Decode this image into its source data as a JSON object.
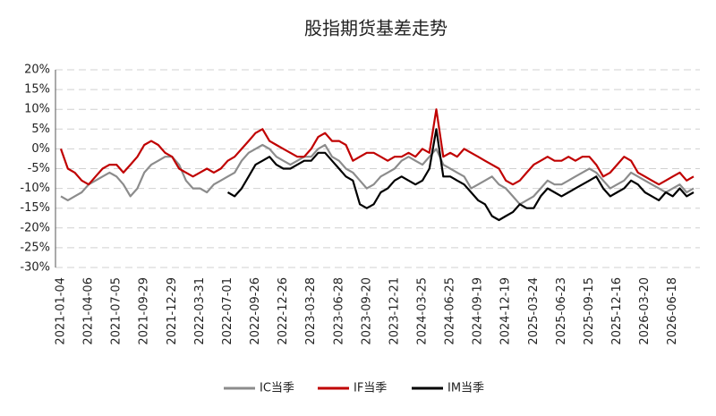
{
  "chart_data": {
    "type": "line",
    "title": "股指期货基差走势",
    "categories": [
      "2021-01-04",
      null,
      null,
      null,
      "2021-04-06",
      null,
      null,
      null,
      "2021-07-05",
      null,
      null,
      null,
      "2021-09-29",
      null,
      null,
      null,
      "2021-12-29",
      null,
      null,
      null,
      "2022-03-31",
      null,
      null,
      null,
      "2022-07-01",
      null,
      null,
      null,
      "2022-09-26",
      null,
      null,
      null,
      "2022-12-26",
      null,
      null,
      null,
      "2023-03-28",
      null,
      null,
      null,
      "2023-06-28",
      null,
      null,
      null,
      "2023-09-20",
      null,
      null,
      null,
      "2023-12-21",
      null,
      null,
      null,
      "2024-03-25",
      null,
      null,
      null,
      "2024-06-25",
      null,
      null,
      null,
      "2024-09-19",
      null,
      null,
      null,
      "2024-12-19",
      null,
      null,
      null,
      "2025-03-24",
      null,
      null,
      null,
      "2025-06-23",
      null,
      null,
      null,
      "2025-09-15",
      null,
      null,
      null,
      "2025-12-16",
      null,
      null,
      null,
      "2026-03-20",
      null,
      null,
      null,
      "2026-06-18",
      null,
      null,
      null
    ],
    "series": [
      {
        "name": "IC当季",
        "color": "#8c8c8c",
        "values": [
          -12,
          -13,
          -12,
          -11,
          -9,
          -8,
          -7,
          -6,
          -7,
          -9,
          -12,
          -10,
          -6,
          -4,
          -3,
          -2,
          -2,
          -4,
          -8,
          -10,
          -10,
          -11,
          -9,
          -8,
          -7,
          -6,
          -3,
          -1,
          0,
          1,
          0,
          -2,
          -3,
          -4,
          -3,
          -2,
          -2,
          0,
          1,
          -2,
          -3,
          -5,
          -6,
          -8,
          -10,
          -9,
          -7,
          -6,
          -5,
          -3,
          -2,
          -3,
          -4,
          -2,
          0,
          -4,
          -5,
          -6,
          -7,
          -10,
          -9,
          -8,
          -7,
          -9,
          -10,
          -12,
          -14,
          -13,
          -12,
          -10,
          -8,
          -9,
          -9,
          -8,
          -7,
          -6,
          -5,
          -6,
          -8,
          -10,
          -9,
          -8,
          -6,
          -7,
          -8,
          -9,
          -10,
          -11,
          -10,
          -9,
          -11,
          -10
        ]
      },
      {
        "name": "IF当季",
        "color": "#c00000",
        "values": [
          0,
          -5,
          -6,
          -8,
          -9,
          -7,
          -5,
          -4,
          -4,
          -6,
          -4,
          -2,
          1,
          2,
          1,
          -1,
          -2,
          -5,
          -6,
          -7,
          -6,
          -5,
          -6,
          -5,
          -3,
          -2,
          0,
          2,
          4,
          5,
          2,
          1,
          0,
          -1,
          -2,
          -2,
          0,
          3,
          4,
          2,
          2,
          1,
          -3,
          -2,
          -1,
          -1,
          -2,
          -3,
          -2,
          -2,
          -1,
          -2,
          0,
          -1,
          10,
          -2,
          -1,
          -2,
          0,
          -1,
          -2,
          -3,
          -4,
          -5,
          -8,
          -9,
          -8,
          -6,
          -4,
          -3,
          -2,
          -3,
          -3,
          -2,
          -3,
          -2,
          -2,
          -4,
          -7,
          -6,
          -4,
          -2,
          -3,
          -6,
          -7,
          -8,
          -9,
          -8,
          -7,
          -6,
          -8,
          -7
        ]
      },
      {
        "name": "IM当季",
        "color": "#000000",
        "values": [
          null,
          null,
          null,
          null,
          null,
          null,
          null,
          null,
          null,
          null,
          null,
          null,
          null,
          null,
          null,
          null,
          null,
          null,
          null,
          null,
          null,
          null,
          null,
          null,
          -11,
          -12,
          -10,
          -7,
          -4,
          -3,
          -2,
          -4,
          -5,
          -5,
          -4,
          -3,
          -3,
          -1,
          -1,
          -3,
          -5,
          -7,
          -8,
          -14,
          -15,
          -14,
          -11,
          -10,
          -8,
          -7,
          -8,
          -9,
          -8,
          -5,
          5,
          -7,
          -7,
          -8,
          -9,
          -11,
          -13,
          -14,
          -17,
          -18,
          -17,
          -16,
          -14,
          -15,
          -15,
          -12,
          -10,
          -11,
          -12,
          -11,
          -10,
          -9,
          -8,
          -7,
          -10,
          -12,
          -11,
          -10,
          -8,
          -9,
          -11,
          -12,
          -13,
          -11,
          -12,
          -10,
          -12,
          -11
        ]
      }
    ],
    "ylim": [
      -30,
      20
    ],
    "yticks": [
      {
        "value": -30,
        "label": "-30%"
      },
      {
        "value": -25,
        "label": "-25%"
      },
      {
        "value": -20,
        "label": "-20%"
      },
      {
        "value": -15,
        "label": "-15%"
      },
      {
        "value": -10,
        "label": "-10%"
      },
      {
        "value": -5,
        "label": "-5%"
      },
      {
        "value": 0,
        "label": "0%"
      },
      {
        "value": 5,
        "label": "5%"
      },
      {
        "value": 10,
        "label": "10%"
      },
      {
        "value": 15,
        "label": "15%"
      },
      {
        "value": 20,
        "label": "20%"
      }
    ],
    "grid": true,
    "legend": "bottom"
  }
}
